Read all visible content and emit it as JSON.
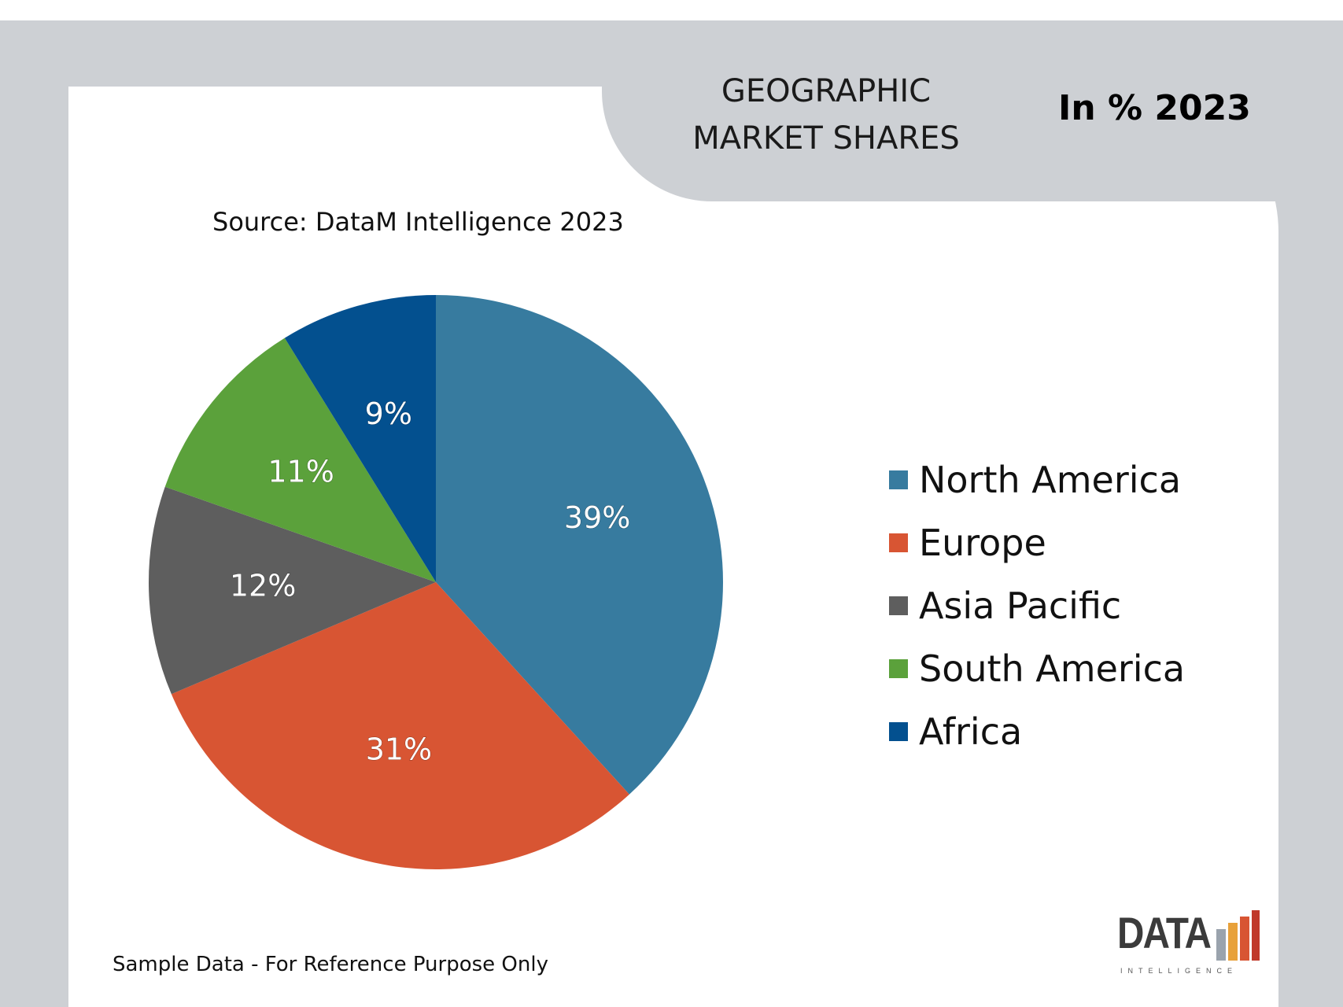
{
  "header": {
    "title": "GEOGRAPHIC MARKET SHARES",
    "subtitle": "In % 2023"
  },
  "source": "Source: DataM Intelligence 2023",
  "footer_note": "Sample Data - For Reference Purpose Only",
  "logo": {
    "word": "DATA",
    "tagline": "INTELLIGENCE"
  },
  "chart_data": {
    "type": "pie",
    "title": "GEOGRAPHIC MARKET SHARES",
    "subtitle": "In % 2023",
    "categories": [
      "North America",
      "Europe",
      "Asia Pacific",
      "South America",
      "Africa"
    ],
    "values": [
      39,
      31,
      12,
      11,
      9
    ],
    "labels": [
      "39%",
      "31%",
      "12%",
      "11%",
      "9%"
    ],
    "colors": [
      "#377b9f",
      "#d85533",
      "#5e5e5e",
      "#5ba13b",
      "#03508f"
    ],
    "start": "12 o'clock, clockwise",
    "legend_position": "right"
  }
}
